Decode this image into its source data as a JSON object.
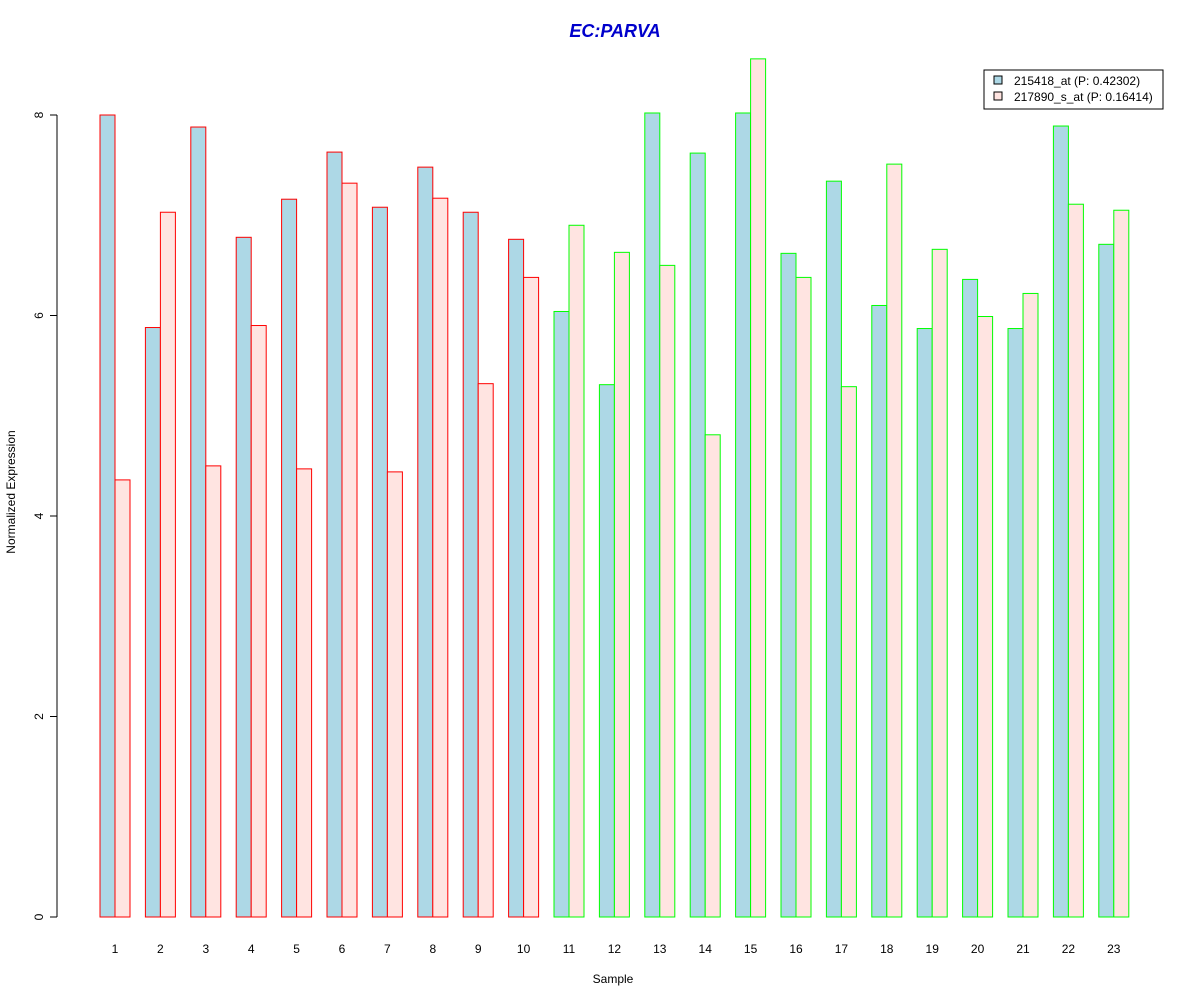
{
  "chart_data": {
    "type": "bar",
    "title": "EC:PARVA",
    "xlabel": "Sample",
    "ylabel": "Normalized Expression",
    "ylim": [
      0,
      8.6
    ],
    "yticks": [
      "0",
      "2",
      "4",
      "6",
      "8"
    ],
    "categories": [
      "1",
      "2",
      "3",
      "4",
      "5",
      "6",
      "7",
      "8",
      "9",
      "10",
      "11",
      "12",
      "13",
      "14",
      "15",
      "16",
      "17",
      "18",
      "19",
      "20",
      "21",
      "22",
      "23"
    ],
    "series": [
      {
        "name": "215418_at (P: 0.42302)",
        "fill": "#ADD8E6",
        "values": [
          8.0,
          5.88,
          7.88,
          6.78,
          7.16,
          7.63,
          7.08,
          7.48,
          7.03,
          6.76,
          6.04,
          5.31,
          8.02,
          7.62,
          8.02,
          6.62,
          7.34,
          6.1,
          5.87,
          6.36,
          5.87,
          7.89,
          6.71
        ]
      },
      {
        "name": "217890_s_at (P: 0.16414)",
        "fill": "#FFE4E1",
        "values": [
          4.36,
          7.03,
          4.5,
          5.9,
          4.47,
          7.32,
          4.44,
          7.17,
          5.32,
          6.38,
          6.9,
          6.63,
          6.5,
          4.81,
          8.56,
          6.38,
          5.29,
          7.51,
          6.66,
          5.99,
          6.22,
          7.11,
          7.05
        ]
      }
    ],
    "group_border_colors": [
      "#FF0000",
      "#FF0000",
      "#FF0000",
      "#FF0000",
      "#FF0000",
      "#FF0000",
      "#FF0000",
      "#FF0000",
      "#FF0000",
      "#FF0000",
      "#00FF00",
      "#00FF00",
      "#00FF00",
      "#00FF00",
      "#00FF00",
      "#00FF00",
      "#00FF00",
      "#00FF00",
      "#00FF00",
      "#00FF00",
      "#00FF00",
      "#00FF00",
      "#00FF00"
    ],
    "title_color": "#0000CC",
    "legend_position": "top-right",
    "grid": false
  }
}
